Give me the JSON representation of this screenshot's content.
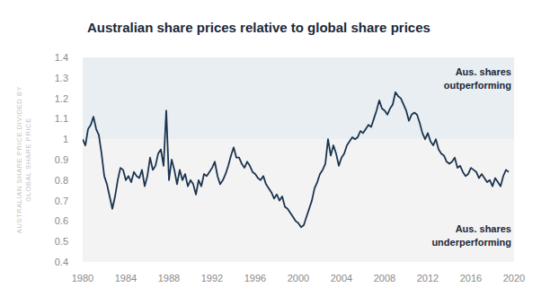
{
  "chart_data": {
    "type": "line",
    "title": "Australian share prices relative to global share prices",
    "y_label": "AUSTRALIAN SHARE PRICE DIVIDED BY GLOBAL SHARE PRICE",
    "color": "#1b3550",
    "grid": false,
    "xlim": [
      1980,
      2020
    ],
    "xticks": [
      1980,
      1984,
      1988,
      1992,
      1996,
      2000,
      2004,
      2008,
      2012,
      2016,
      2020
    ],
    "ylim": [
      0.4,
      1.4
    ],
    "yticks": [
      0.4,
      0.5,
      0.6,
      0.7,
      0.8,
      0.9,
      1,
      1.1,
      1.2,
      1.3,
      1.4
    ],
    "annotations": [
      {
        "text": "Aus. shares outperforming",
        "y_from": 1,
        "y_to": 1.4,
        "color": "#e8eef2"
      },
      {
        "text": "Aus. shares underperforming",
        "y_from": 0.4,
        "y_to": 1,
        "color": "#f3f3f3"
      }
    ],
    "x": [
      1980,
      1980.25,
      1980.5,
      1980.75,
      1981,
      1981.25,
      1981.5,
      1981.75,
      1982,
      1982.25,
      1982.5,
      1982.75,
      1983,
      1983.25,
      1983.5,
      1983.75,
      1984,
      1984.25,
      1984.5,
      1984.75,
      1985,
      1985.25,
      1985.5,
      1985.75,
      1986,
      1986.25,
      1986.5,
      1986.75,
      1987,
      1987.25,
      1987.5,
      1987.75,
      1988,
      1988.25,
      1988.5,
      1988.75,
      1989,
      1989.25,
      1989.5,
      1989.75,
      1990,
      1990.25,
      1990.5,
      1990.75,
      1991,
      1991.25,
      1991.5,
      1991.75,
      1992,
      1992.25,
      1992.5,
      1992.75,
      1993,
      1993.25,
      1993.5,
      1993.75,
      1994,
      1994.25,
      1994.5,
      1994.75,
      1995,
      1995.25,
      1995.5,
      1995.75,
      1996,
      1996.25,
      1996.5,
      1996.75,
      1997,
      1997.25,
      1997.5,
      1997.75,
      1998,
      1998.25,
      1998.5,
      1998.75,
      1999,
      1999.25,
      1999.5,
      1999.75,
      2000,
      2000.25,
      2000.5,
      2000.75,
      2001,
      2001.25,
      2001.5,
      2001.75,
      2002,
      2002.25,
      2002.5,
      2002.75,
      2003,
      2003.25,
      2003.5,
      2003.75,
      2004,
      2004.25,
      2004.5,
      2004.75,
      2005,
      2005.25,
      2005.5,
      2005.75,
      2006,
      2006.25,
      2006.5,
      2006.75,
      2007,
      2007.25,
      2007.5,
      2007.75,
      2008,
      2008.25,
      2008.5,
      2008.75,
      2009,
      2009.25,
      2009.5,
      2009.75,
      2010,
      2010.25,
      2010.5,
      2010.75,
      2011,
      2011.25,
      2011.5,
      2011.75,
      2012,
      2012.25,
      2012.5,
      2012.75,
      2013,
      2013.25,
      2013.5,
      2013.75,
      2014,
      2014.25,
      2014.5,
      2014.75,
      2015,
      2015.25,
      2015.5,
      2015.75,
      2016,
      2016.25,
      2016.5,
      2016.75,
      2017,
      2017.25,
      2017.5,
      2017.75,
      2018,
      2018.25,
      2018.5,
      2018.75,
      2019,
      2019.25,
      2019.5
    ],
    "values": [
      1.0,
      0.97,
      1.05,
      1.07,
      1.11,
      1.05,
      1.02,
      0.93,
      0.82,
      0.78,
      0.72,
      0.66,
      0.72,
      0.8,
      0.86,
      0.85,
      0.8,
      0.82,
      0.79,
      0.84,
      0.82,
      0.81,
      0.85,
      0.77,
      0.82,
      0.91,
      0.85,
      0.87,
      0.93,
      0.95,
      0.87,
      1.14,
      0.8,
      0.9,
      0.85,
      0.78,
      0.85,
      0.8,
      0.83,
      0.77,
      0.8,
      0.78,
      0.73,
      0.8,
      0.77,
      0.83,
      0.82,
      0.84,
      0.86,
      0.89,
      0.82,
      0.78,
      0.8,
      0.83,
      0.87,
      0.92,
      0.96,
      0.91,
      0.91,
      0.88,
      0.86,
      0.89,
      0.87,
      0.84,
      0.83,
      0.81,
      0.8,
      0.82,
      0.78,
      0.76,
      0.74,
      0.71,
      0.73,
      0.7,
      0.72,
      0.67,
      0.66,
      0.64,
      0.62,
      0.6,
      0.59,
      0.57,
      0.58,
      0.62,
      0.66,
      0.7,
      0.76,
      0.79,
      0.83,
      0.85,
      0.88,
      1.0,
      0.92,
      0.97,
      0.93,
      0.87,
      0.91,
      0.93,
      0.97,
      0.99,
      1.01,
      1.0,
      1.01,
      1.04,
      1.03,
      1.05,
      1.07,
      1.06,
      1.1,
      1.14,
      1.19,
      1.15,
      1.14,
      1.12,
      1.15,
      1.17,
      1.23,
      1.21,
      1.2,
      1.17,
      1.14,
      1.09,
      1.12,
      1.13,
      1.12,
      1.08,
      1.03,
      1.0,
      1.03,
      0.99,
      0.97,
      1.0,
      0.95,
      0.93,
      0.92,
      0.89,
      0.88,
      0.89,
      0.91,
      0.86,
      0.87,
      0.84,
      0.82,
      0.83,
      0.86,
      0.85,
      0.84,
      0.81,
      0.83,
      0.81,
      0.79,
      0.8,
      0.77,
      0.81,
      0.79,
      0.77,
      0.82,
      0.85,
      0.84
    ]
  }
}
